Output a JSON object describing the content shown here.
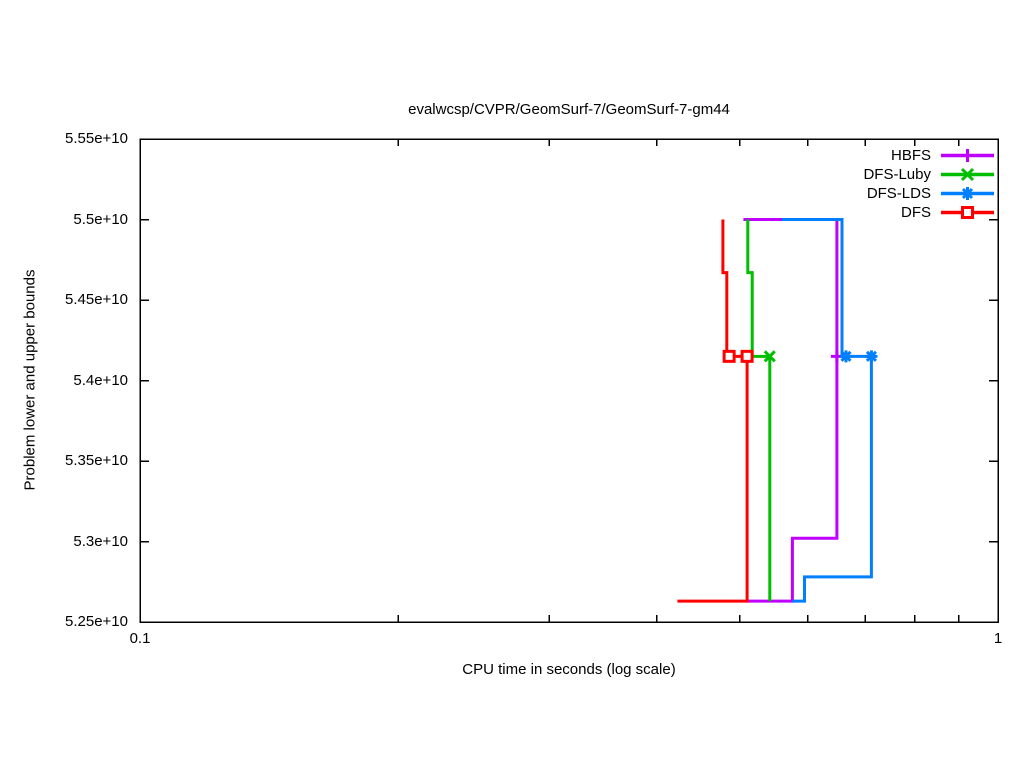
{
  "title": "evalwcsp/CVPR/GeomSurf-7/GeomSurf-7-gm44",
  "axes": {
    "xlabel": "CPU time in seconds (log scale)",
    "ylabel": "Problem lower and upper bounds",
    "x_scale": "log",
    "xlim": [
      0.1,
      1
    ],
    "ylim": [
      52500000000.0,
      55500000000.0
    ],
    "x_ticks": [
      {
        "t": 0.1,
        "label": "0.1"
      },
      {
        "t": 1,
        "label": "1"
      }
    ],
    "x_minor_ticks": [
      0.2,
      0.3,
      0.4,
      0.5,
      0.6,
      0.7,
      0.8,
      0.9
    ],
    "y_ticks": [
      {
        "v": 52500000000.0,
        "label": "5.25e+10"
      },
      {
        "v": 53000000000.0,
        "label": "5.3e+10"
      },
      {
        "v": 53500000000.0,
        "label": "5.35e+10"
      },
      {
        "v": 54000000000.0,
        "label": "5.4e+10"
      },
      {
        "v": 54500000000.0,
        "label": "5.45e+10"
      },
      {
        "v": 55000000000.0,
        "label": "5.5e+10"
      },
      {
        "v": 55500000000.0,
        "label": "5.55e+10"
      }
    ],
    "grid": "off",
    "border_color": "#000000"
  },
  "legend": {
    "position": "top-right",
    "entries": [
      {
        "label": "HBFS",
        "color": "#bf00ff",
        "marker": "plus"
      },
      {
        "label": "DFS-Luby",
        "color": "#00bf00",
        "marker": "cross"
      },
      {
        "label": "DFS-LDS",
        "color": "#0080ff",
        "marker": "star"
      },
      {
        "label": "DFS",
        "color": "#ff0000",
        "marker": "square"
      }
    ]
  },
  "chart_data": {
    "type": "line",
    "x_scale": "log",
    "xlim": [
      0.1,
      1
    ],
    "ylim": [
      52500000000.0,
      55500000000.0
    ],
    "optimum_value": 54150000000.0,
    "series": [
      {
        "name": "HBFS",
        "color": "#bf00ff",
        "marker": "plus",
        "upper_bound": [
          [
            0.505,
            55000000000.0
          ],
          [
            0.649,
            55000000000.0
          ],
          [
            0.649,
            54150000000.0
          ]
        ],
        "lower_bound": [
          [
            0.51,
            52630000000.0
          ],
          [
            0.576,
            52630000000.0
          ],
          [
            0.576,
            53020000000.0
          ],
          [
            0.649,
            53020000000.0
          ],
          [
            0.649,
            54150000000.0
          ]
        ],
        "marker_points": [
          [
            0.649,
            54150000000.0
          ]
        ]
      },
      {
        "name": "DFS-Luby",
        "color": "#00bf00",
        "marker": "cross",
        "upper_bound": [
          [
            0.511,
            55000000000.0
          ],
          [
            0.511,
            54670000000.0
          ],
          [
            0.517,
            54670000000.0
          ],
          [
            0.517,
            54150000000.0
          ],
          [
            0.542,
            54150000000.0
          ]
        ],
        "lower_bound": [
          [
            0.542,
            52630000000.0
          ],
          [
            0.542,
            54150000000.0
          ]
        ],
        "marker_points": [
          [
            0.542,
            54150000000.0
          ]
        ]
      },
      {
        "name": "DFS-LDS",
        "color": "#0080ff",
        "marker": "star",
        "upper_bound": [
          [
            0.56,
            55000000000.0
          ],
          [
            0.658,
            55000000000.0
          ],
          [
            0.658,
            54150000000.0
          ],
          [
            0.712,
            54150000000.0
          ]
        ],
        "lower_bound": [
          [
            0.576,
            52630000000.0
          ],
          [
            0.595,
            52630000000.0
          ],
          [
            0.595,
            52780000000.0
          ],
          [
            0.712,
            52780000000.0
          ],
          [
            0.712,
            54150000000.0
          ]
        ],
        "marker_points": [
          [
            0.665,
            54150000000.0
          ],
          [
            0.712,
            54150000000.0
          ]
        ]
      },
      {
        "name": "DFS",
        "color": "#ff0000",
        "marker": "square",
        "upper_bound": [
          [
            0.478,
            55000000000.0
          ],
          [
            0.478,
            54670000000.0
          ],
          [
            0.483,
            54670000000.0
          ],
          [
            0.483,
            54150000000.0
          ],
          [
            0.51,
            54150000000.0
          ]
        ],
        "lower_bound": [
          [
            0.423,
            52630000000.0
          ],
          [
            0.51,
            52630000000.0
          ],
          [
            0.51,
            54150000000.0
          ]
        ],
        "marker_points": [
          [
            0.486,
            54150000000.0
          ],
          [
            0.51,
            54150000000.0
          ]
        ]
      }
    ]
  }
}
